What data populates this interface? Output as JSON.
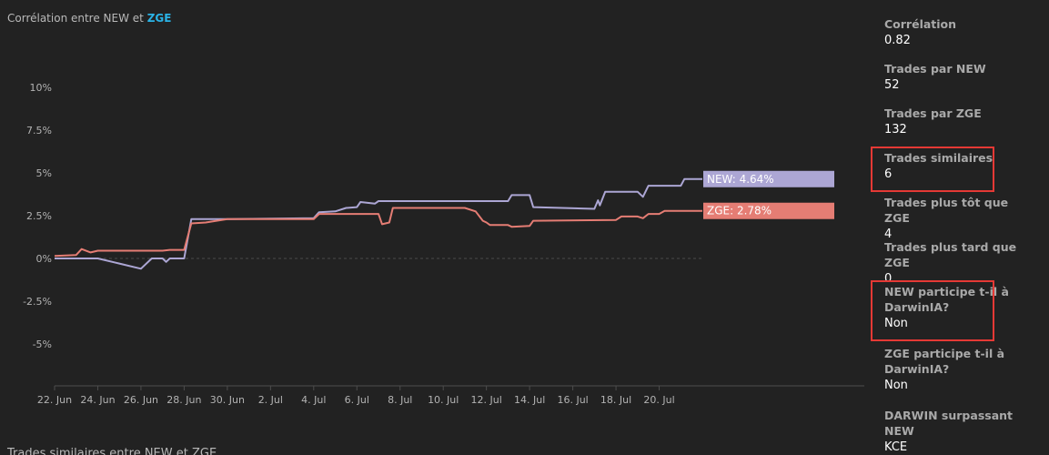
{
  "header": {
    "title_prefix": "Corrélation entre NEW et",
    "title_highlight": "ZGE"
  },
  "footer": {
    "title": "Trades similaires entre NEW et ZGE"
  },
  "stats": [
    {
      "label": "Corrélation",
      "value": "0.82",
      "highlighted": false
    },
    {
      "label": "Trades par NEW",
      "value": "52",
      "highlighted": false
    },
    {
      "label": "Trades par ZGE",
      "value": "132",
      "highlighted": false
    },
    {
      "label": "Trades similaires",
      "value": "6",
      "highlighted": true
    },
    {
      "label": "Trades plus tôt que ZGE",
      "value": "4",
      "highlighted": false
    },
    {
      "label": "Trades plus tard que ZGE",
      "value": "0",
      "highlighted": false
    },
    {
      "label": "NEW participe t-il à DarwinIA?",
      "value": "Non",
      "highlighted": true
    },
    {
      "label": "ZGE participe t-il à DarwinIA?",
      "value": "Non",
      "highlighted": false
    },
    {
      "label": "DARWIN surpassant NEW",
      "value": "KCE",
      "highlighted": false
    }
  ],
  "colors": {
    "highlight_text": "#2ab3e6",
    "highlight_border": "#e53935",
    "new_series": "#aca6d4",
    "zge_series": "#e57d74"
  },
  "chart_data": {
    "type": "line",
    "title": "",
    "xlabel": "",
    "ylabel": "",
    "ylim": [
      -5,
      10
    ],
    "x_range": [
      "2017-06-22",
      "2017-07-22"
    ],
    "x_tick_labels": [
      "22. Jun",
      "24. Jun",
      "26. Jun",
      "28. Jun",
      "30. Jun",
      "2. Jul",
      "4. Jul",
      "6. Jul",
      "8. Jul",
      "10. Jul",
      "12. Jul",
      "14. Jul",
      "16. Jul",
      "18. Jul",
      "20. Jul"
    ],
    "y_tick_labels": [
      "10%",
      "7.5%",
      "5%",
      "2.5%",
      "0%",
      "-2.5%",
      "-5%"
    ],
    "y_tick_values": [
      10,
      7.5,
      5,
      2.5,
      0,
      -2.5,
      -5
    ],
    "grid": false,
    "zero_line": "dashed",
    "series": [
      {
        "name": "NEW",
        "color": "#aca6d4",
        "end_label": "NEW: 4.64%",
        "points": [
          [
            "2017-06-22",
            0.0
          ],
          [
            "2017-06-24",
            0.0
          ],
          [
            "2017-06-25",
            -0.3
          ],
          [
            "2017-06-26",
            -0.6
          ],
          [
            "2017-06-26 12:00",
            0.0
          ],
          [
            "2017-06-27",
            0.0
          ],
          [
            "2017-06-27 04:00",
            -0.2
          ],
          [
            "2017-06-27 08:00",
            0.0
          ],
          [
            "2017-06-28",
            0.0
          ],
          [
            "2017-06-28 08:00",
            2.3
          ],
          [
            "2017-06-30",
            2.3
          ],
          [
            "2017-07-04",
            2.35
          ],
          [
            "2017-07-04 06:00",
            2.7
          ],
          [
            "2017-07-05",
            2.75
          ],
          [
            "2017-07-05 12:00",
            2.95
          ],
          [
            "2017-07-06",
            3.0
          ],
          [
            "2017-07-06 04:00",
            3.3
          ],
          [
            "2017-07-06 20:00",
            3.2
          ],
          [
            "2017-07-07",
            3.35
          ],
          [
            "2017-07-13",
            3.35
          ],
          [
            "2017-07-13 04:00",
            3.7
          ],
          [
            "2017-07-14",
            3.7
          ],
          [
            "2017-07-14 04:00",
            3.0
          ],
          [
            "2017-07-17",
            2.9
          ],
          [
            "2017-07-17 04:00",
            3.4
          ],
          [
            "2017-07-17 06:00",
            3.1
          ],
          [
            "2017-07-17 12:00",
            3.9
          ],
          [
            "2017-07-18",
            3.9
          ],
          [
            "2017-07-19",
            3.9
          ],
          [
            "2017-07-19 06:00",
            3.6
          ],
          [
            "2017-07-19 12:00",
            4.25
          ],
          [
            "2017-07-21",
            4.25
          ],
          [
            "2017-07-21 04:00",
            4.64
          ],
          [
            "2017-07-22",
            4.64
          ]
        ]
      },
      {
        "name": "ZGE",
        "color": "#e57d74",
        "end_label": "ZGE: 2.78%",
        "points": [
          [
            "2017-06-22",
            0.15
          ],
          [
            "2017-06-23",
            0.2
          ],
          [
            "2017-06-23 06:00",
            0.55
          ],
          [
            "2017-06-23 16:00",
            0.35
          ],
          [
            "2017-06-24",
            0.45
          ],
          [
            "2017-06-27",
            0.45
          ],
          [
            "2017-06-27 08:00",
            0.5
          ],
          [
            "2017-06-28",
            0.5
          ],
          [
            "2017-06-28 08:00",
            2.05
          ],
          [
            "2017-06-29",
            2.1
          ],
          [
            "2017-06-30",
            2.3
          ],
          [
            "2017-07-04",
            2.3
          ],
          [
            "2017-07-04 06:00",
            2.6
          ],
          [
            "2017-07-07",
            2.6
          ],
          [
            "2017-07-07 04:00",
            2.0
          ],
          [
            "2017-07-07 12:00",
            2.1
          ],
          [
            "2017-07-07 16:00",
            2.95
          ],
          [
            "2017-07-11",
            2.95
          ],
          [
            "2017-07-11 12:00",
            2.75
          ],
          [
            "2017-07-11 20:00",
            2.2
          ],
          [
            "2017-07-12",
            2.1
          ],
          [
            "2017-07-12 04:00",
            1.95
          ],
          [
            "2017-07-13",
            1.95
          ],
          [
            "2017-07-13 04:00",
            1.85
          ],
          [
            "2017-07-14",
            1.9
          ],
          [
            "2017-07-14 04:00",
            2.2
          ],
          [
            "2017-07-18",
            2.25
          ],
          [
            "2017-07-18 06:00",
            2.45
          ],
          [
            "2017-07-19",
            2.45
          ],
          [
            "2017-07-19 06:00",
            2.35
          ],
          [
            "2017-07-19 12:00",
            2.6
          ],
          [
            "2017-07-20",
            2.6
          ],
          [
            "2017-07-20 06:00",
            2.78
          ],
          [
            "2017-07-22",
            2.78
          ]
        ]
      }
    ]
  }
}
